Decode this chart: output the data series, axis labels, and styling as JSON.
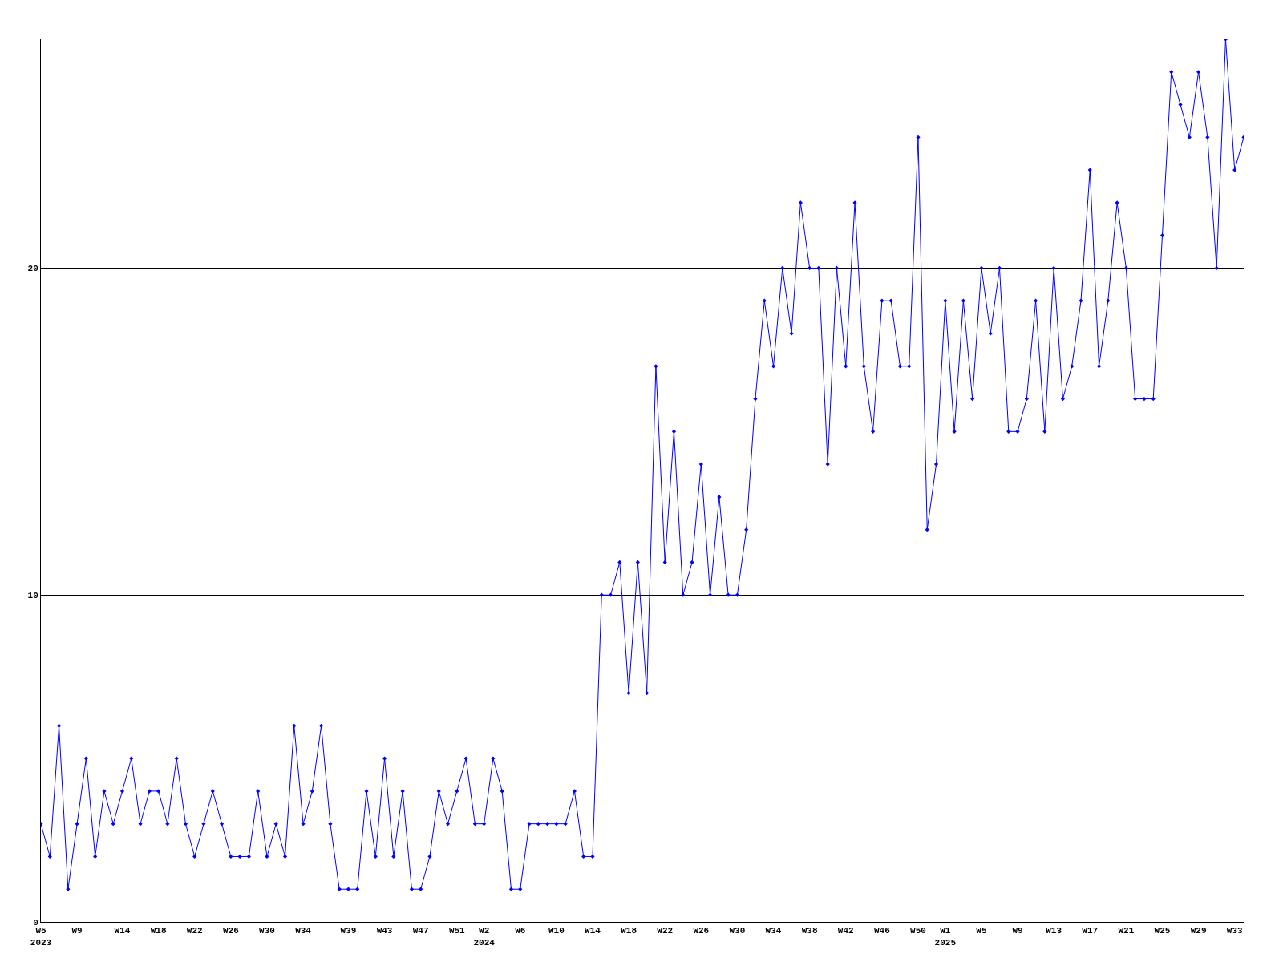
{
  "chart_data": {
    "type": "line",
    "categories": [
      "W5\n2023",
      null,
      null,
      null,
      "W9",
      null,
      null,
      null,
      null,
      "W14",
      null,
      null,
      null,
      "W18",
      null,
      null,
      null,
      "W22",
      null,
      null,
      null,
      "W26",
      null,
      null,
      null,
      "W30",
      null,
      null,
      null,
      "W34",
      null,
      null,
      null,
      null,
      "W39",
      null,
      null,
      null,
      "W43",
      null,
      null,
      null,
      "W47",
      null,
      null,
      null,
      "W51",
      null,
      null,
      "W2\n2024",
      null,
      null,
      null,
      "W6",
      null,
      null,
      null,
      "W10",
      null,
      null,
      null,
      "W14",
      null,
      null,
      null,
      "W18",
      null,
      null,
      null,
      "W22",
      null,
      null,
      null,
      "W26",
      null,
      null,
      null,
      "W30",
      null,
      null,
      null,
      "W34",
      null,
      null,
      null,
      "W38",
      null,
      null,
      null,
      "W42",
      null,
      null,
      null,
      "W46",
      null,
      null,
      null,
      "W50",
      null,
      null,
      "W1\n2025",
      null,
      null,
      null,
      "W5",
      null,
      null,
      null,
      "W9",
      null,
      null,
      null,
      "W13",
      null,
      null,
      null,
      "W17",
      null,
      null,
      null,
      "W21",
      null,
      null,
      null,
      "W25",
      null,
      null,
      null,
      "W29",
      null,
      null,
      null,
      "W33",
      null
    ],
    "series": [
      {
        "color": "#0000ff",
        "values": [
          3,
          2,
          6,
          1,
          3,
          5,
          2,
          4,
          3,
          4,
          5,
          3,
          4,
          4,
          3,
          5,
          3,
          2,
          3,
          4,
          3,
          2,
          2,
          2,
          4,
          2,
          3,
          2,
          6,
          3,
          4,
          6,
          3,
          1,
          1,
          1,
          4,
          2,
          5,
          2,
          4,
          1,
          1,
          2,
          4,
          3,
          4,
          5,
          3,
          3,
          5,
          4,
          1,
          1,
          3,
          3,
          3,
          3,
          3,
          4,
          2,
          2,
          10,
          10,
          11,
          7,
          11,
          7,
          17,
          11,
          15,
          10,
          11,
          14,
          10,
          13,
          10,
          10,
          12,
          16,
          19,
          17,
          20,
          18,
          22,
          20,
          20,
          14,
          20,
          17,
          22,
          17,
          15,
          19,
          19,
          17,
          17,
          24,
          12,
          14,
          19,
          15,
          19,
          16,
          20,
          18,
          20,
          15,
          15,
          16,
          19,
          15,
          20,
          16,
          17,
          19,
          23,
          17,
          19,
          22,
          20,
          16,
          16,
          16,
          21,
          26,
          25,
          24,
          26,
          24,
          20,
          27,
          23,
          24
        ]
      }
    ],
    "ylim": [
      0,
      27
    ],
    "yticks": [
      0,
      10,
      20
    ],
    "grid": "y",
    "marker": "diamond",
    "line_style": "solid"
  }
}
